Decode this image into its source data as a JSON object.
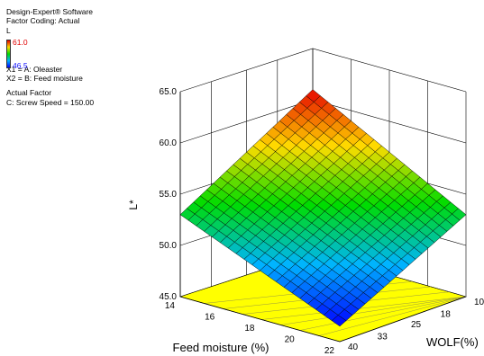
{
  "header": {
    "software": "Design-Expert® Software",
    "coding": "Factor Coding: Actual",
    "response": "L",
    "x1": "X1 = A: Oleaster",
    "x2": "X2 = B: Feed moisture",
    "actual_factor_title": "Actual Factor",
    "actual_factor": "C: Screw Speed = 150.00"
  },
  "colorbar": {
    "max_label": "61.0",
    "min_label": "46.5"
  },
  "chart_data": {
    "type": "surface3d",
    "title": "",
    "zlabel": "L*",
    "xlabel": "Feed moisture (%)",
    "ylabel": "WOLF(%)",
    "zlim": [
      45,
      65
    ],
    "z_ticks": [
      "45.0",
      "50.0",
      "55.0",
      "60.0",
      "65.0"
    ],
    "moisture_range": [
      14,
      22
    ],
    "moisture_ticks": [
      "14",
      "16",
      "18",
      "20",
      "22"
    ],
    "wolf_range": [
      10,
      40
    ],
    "wolf_ticks": [
      "10",
      "18",
      "25",
      "33",
      "40"
    ],
    "surface_corners": {
      "moisture14_wolf10": 61.0,
      "moisture14_wolf40": 53.0,
      "moisture22_wolf10": 53.0,
      "moisture22_wolf40": 46.5
    },
    "color_range": [
      46.5,
      61.0
    ],
    "mesh_divisions": 20,
    "grid": true
  }
}
